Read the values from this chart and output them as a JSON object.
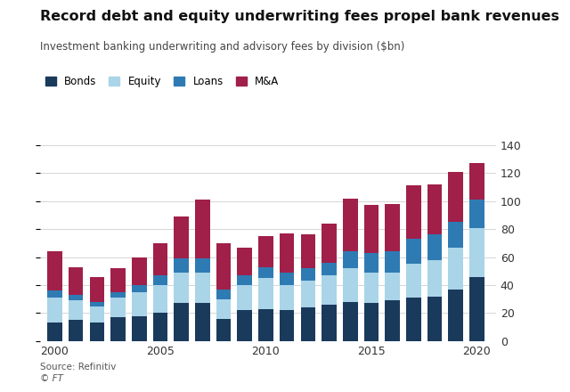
{
  "years": [
    2000,
    2001,
    2002,
    2003,
    2004,
    2005,
    2006,
    2007,
    2008,
    2009,
    2010,
    2011,
    2012,
    2013,
    2014,
    2015,
    2016,
    2017,
    2018,
    2019,
    2020
  ],
  "bonds": [
    13,
    15,
    13,
    17,
    18,
    20,
    27,
    27,
    16,
    22,
    23,
    22,
    24,
    26,
    28,
    27,
    29,
    31,
    32,
    37,
    46
  ],
  "equity": [
    18,
    14,
    12,
    14,
    17,
    20,
    22,
    22,
    14,
    18,
    22,
    18,
    19,
    21,
    24,
    22,
    20,
    24,
    26,
    30,
    35
  ],
  "loans": [
    5,
    4,
    3,
    4,
    5,
    7,
    10,
    10,
    7,
    7,
    8,
    9,
    9,
    9,
    12,
    14,
    15,
    18,
    18,
    18,
    20
  ],
  "mna": [
    28,
    20,
    18,
    17,
    20,
    23,
    30,
    42,
    33,
    20,
    22,
    28,
    24,
    28,
    38,
    34,
    34,
    38,
    36,
    36,
    26
  ],
  "colors": {
    "bonds": "#1a3a5c",
    "equity": "#aad4e8",
    "loans": "#2e7bb4",
    "mna": "#a0204a"
  },
  "title": "Record debt and equity underwriting fees propel bank revenues",
  "subtitle": "Investment banking underwriting and advisory fees by division ($bn)",
  "ylim": [
    0,
    140
  ],
  "yticks": [
    0,
    20,
    40,
    60,
    80,
    100,
    120,
    140
  ],
  "source_line1": "Source: Refinitiv",
  "source_line2": "© FT",
  "legend_labels": [
    "Bonds",
    "Equity",
    "Loans",
    "M&A"
  ],
  "xticks": [
    2000,
    2005,
    2010,
    2015,
    2020
  ],
  "background_color": "#ffffff",
  "grid_color": "#d0d0d0",
  "bar_width": 0.7
}
